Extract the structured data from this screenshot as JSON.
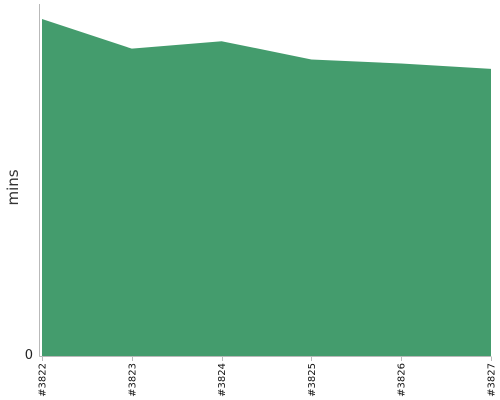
{
  "chart_data": {
    "type": "area",
    "title": "",
    "xlabel": "",
    "ylabel": "mins",
    "categories": [
      "#3822",
      "#3823",
      "#3824",
      "#3825",
      "#3826",
      "#3827"
    ],
    "series": [
      {
        "values": [
          50,
          45.6,
          46.7,
          44,
          43.4,
          42.6
        ],
        "color": "#449c6d"
      }
    ],
    "ylim": [
      0,
      50
    ],
    "y_ticks": [
      0
    ],
    "y_tick_labels": [
      "0"
    ],
    "grid": false,
    "legend": "none"
  }
}
